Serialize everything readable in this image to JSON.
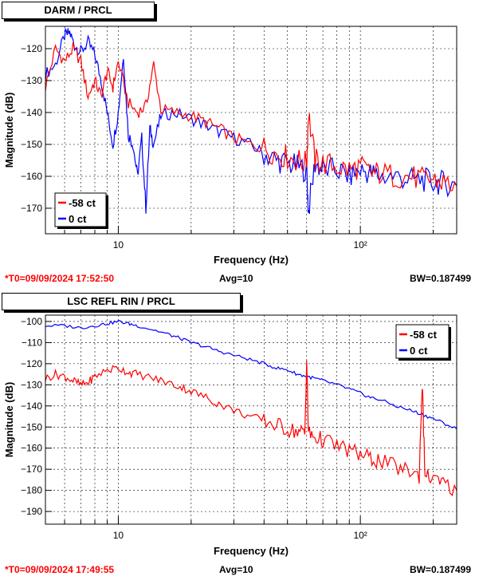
{
  "chart_data": [
    {
      "type": "line",
      "title": "DARM / PRCL",
      "xlabel": "Frequency (Hz)",
      "ylabel": "Magnitude (dB)",
      "xscale": "log",
      "xlim": [
        5,
        250
      ],
      "ylim": [
        -178,
        -113
      ],
      "xticklabels": [
        "10",
        "10²"
      ],
      "yticks": [
        -120,
        -130,
        -140,
        -150,
        -160,
        -170
      ],
      "grid": true,
      "legend": "bottom-left",
      "series": [
        {
          "name": "-58 ct",
          "color": "#ff0000",
          "x": [
            5.0,
            5.5,
            6.0,
            6.5,
            7.0,
            7.5,
            8.0,
            8.5,
            9.0,
            9.5,
            10.0,
            11.0,
            12.0,
            13.0,
            14.0,
            15.0,
            17.0,
            20.0,
            23.0,
            26.0,
            30.0,
            35.0,
            40.0,
            45.0,
            50.0,
            55.0,
            60.0,
            61.0,
            65.0,
            70.0,
            80.0,
            90.0,
            100.0,
            110.0,
            120.0,
            140.0,
            160.0,
            180.0,
            200.0,
            220.0,
            250.0
          ],
          "y": [
            -132,
            -120,
            -124,
            -120,
            -124,
            -135,
            -130,
            -135,
            -127,
            -132,
            -124,
            -137,
            -140,
            -138,
            -125,
            -139,
            -140,
            -141,
            -143,
            -145,
            -148,
            -150,
            -151,
            -153,
            -154,
            -155,
            -156,
            -140,
            -155,
            -156,
            -157,
            -158,
            -157,
            -159,
            -159,
            -160,
            -160,
            -161,
            -161,
            -162,
            -163
          ]
        },
        {
          "name": "0 ct",
          "color": "#0000ff",
          "x": [
            5.0,
            5.5,
            6.0,
            6.3,
            6.6,
            7.0,
            7.5,
            8.0,
            8.5,
            9.0,
            9.5,
            10.0,
            10.5,
            11.0,
            11.5,
            12.0,
            12.5,
            13.0,
            13.5,
            14.0,
            15.0,
            17.0,
            20.0,
            23.0,
            26.0,
            30.0,
            35.0,
            40.0,
            45.0,
            50.0,
            55.0,
            60.0,
            61.0,
            65.0,
            70.0,
            80.0,
            90.0,
            100.0,
            110.0,
            120.0,
            140.0,
            160.0,
            180.0,
            200.0,
            220.0,
            250.0
          ],
          "y": [
            -128,
            -125,
            -116,
            -115,
            -119,
            -121,
            -118,
            -122,
            -130,
            -140,
            -150,
            -140,
            -122,
            -147,
            -150,
            -160,
            -148,
            -170,
            -145,
            -150,
            -141,
            -140,
            -142,
            -144,
            -146,
            -148,
            -150,
            -153,
            -155,
            -156,
            -157,
            -158,
            -171,
            -156,
            -158,
            -158,
            -160,
            -158,
            -159,
            -160,
            -160,
            -161,
            -161,
            -162,
            -162,
            -163
          ]
        }
      ]
    },
    {
      "type": "line",
      "title": "LSC REFL RIN / PRCL",
      "xlabel": "Frequency (Hz)",
      "ylabel": "Magnitude (dB)",
      "xscale": "log",
      "xlim": [
        5,
        250
      ],
      "ylim": [
        -196,
        -97
      ],
      "xticklabels": [
        "10",
        "10²"
      ],
      "yticks": [
        -100,
        -110,
        -120,
        -130,
        -140,
        -150,
        -160,
        -170,
        -180,
        -190
      ],
      "grid": true,
      "legend": "top-right",
      "series": [
        {
          "name": "-58 ct",
          "color": "#ff0000",
          "x": [
            5.0,
            5.5,
            6.0,
            6.5,
            7.0,
            7.5,
            8.0,
            9.0,
            10.0,
            11.0,
            12.0,
            14.0,
            16.0,
            18.0,
            20.0,
            23.0,
            26.0,
            30.0,
            35.0,
            40.0,
            45.0,
            50.0,
            55.0,
            59.0,
            60.0,
            61.0,
            65.0,
            70.0,
            80.0,
            90.0,
            100.0,
            110.0,
            120.0,
            140.0,
            160.0,
            175.0,
            180.0,
            185.0,
            200.0,
            220.0,
            250.0
          ],
          "y": [
            -127,
            -125,
            -126,
            -128,
            -130,
            -129,
            -126,
            -123,
            -122,
            -124,
            -125,
            -127,
            -129,
            -131,
            -133,
            -136,
            -139,
            -142,
            -145,
            -147,
            -149,
            -151,
            -152,
            -153,
            -118,
            -153,
            -155,
            -156,
            -159,
            -161,
            -163,
            -165,
            -166,
            -169,
            -171,
            -173,
            -129,
            -173,
            -175,
            -177,
            -180
          ]
        },
        {
          "name": "0 ct",
          "color": "#0000ff",
          "x": [
            5.0,
            6.0,
            7.0,
            8.0,
            9.0,
            10.0,
            11.0,
            12.0,
            14.0,
            16.0,
            18.0,
            20.0,
            23.0,
            26.0,
            30.0,
            35.0,
            40.0,
            45.0,
            50.0,
            55.0,
            60.0,
            65.0,
            70.0,
            80.0,
            90.0,
            100.0,
            110.0,
            120.0,
            140.0,
            160.0,
            180.0,
            200.0,
            220.0,
            250.0
          ],
          "y": [
            -102,
            -102,
            -103,
            -102,
            -101,
            -100,
            -101,
            -102,
            -104,
            -106,
            -108,
            -110,
            -112,
            -114,
            -116,
            -118,
            -120,
            -122,
            -123,
            -125,
            -126,
            -127,
            -128,
            -130,
            -132,
            -134,
            -136,
            -137,
            -140,
            -142,
            -144,
            -146,
            -148,
            -151
          ]
        }
      ]
    }
  ],
  "status": [
    {
      "time": "*T0=09/09/2024 17:52:50",
      "avg": "Avg=10",
      "bw": "BW=0.187499"
    },
    {
      "time": "*T0=09/09/2024 17:49:55",
      "avg": "Avg=10",
      "bw": "BW=0.187499"
    }
  ]
}
